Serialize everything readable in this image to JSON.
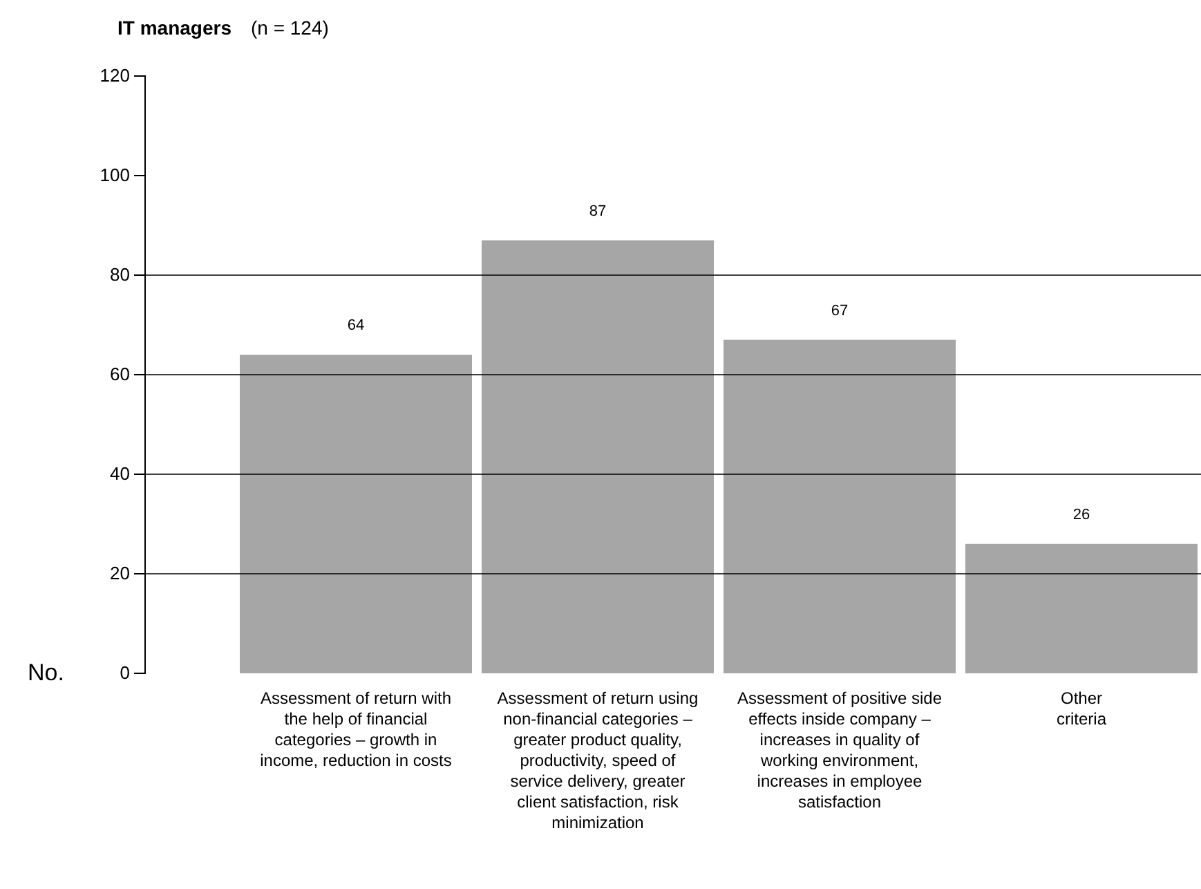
{
  "chart_data": {
    "type": "bar",
    "title": "IT managers",
    "subtitle": "(n = 124)",
    "ylabel": "No.",
    "categories": [
      "Assessment of return with the help of financial categories – growth in income, reduction in costs",
      "Assessment of return using non-financial categories – greater product quality, productivity, speed of service delivery, greater client satisfaction, risk minimization",
      "Assessment of positive side effects inside company – increases in quality of working environment, increases in employee satisfaction",
      "Other criteria"
    ],
    "values": [
      64,
      87,
      67,
      26
    ],
    "color": "#a6a6a6",
    "data_labels": true,
    "ylim": [
      0,
      120
    ],
    "yticks": [
      0,
      20,
      40,
      60,
      80,
      100,
      120
    ],
    "ref_lines": [
      {
        "axis": "y",
        "value": 20,
        "color": "#000000"
      },
      {
        "axis": "y",
        "value": 40,
        "color": "#000000"
      },
      {
        "axis": "y",
        "value": 60,
        "color": "#000000"
      },
      {
        "axis": "y",
        "value": 80,
        "color": "#000000"
      }
    ]
  }
}
